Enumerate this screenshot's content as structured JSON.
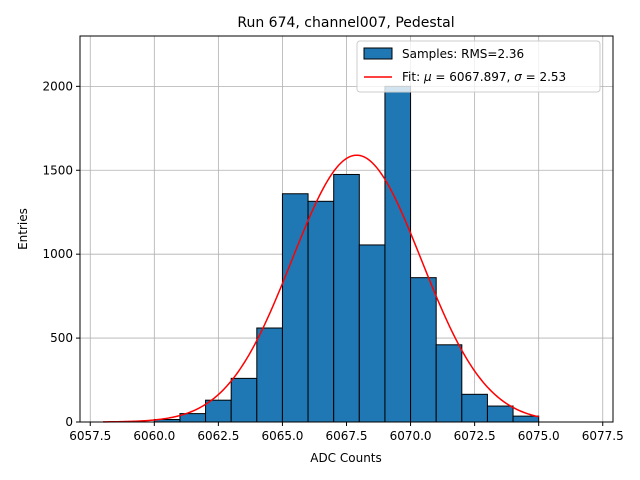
{
  "chart_data": {
    "type": "bar",
    "title": "Run 674, channel007, Pedestal",
    "xlabel": "ADC Counts",
    "ylabel": "Entries",
    "xlim": [
      6057.1,
      6077.9
    ],
    "ylim": [
      0,
      2300
    ],
    "grid": true,
    "xticks": [
      6057.5,
      6060.0,
      6062.5,
      6065.0,
      6067.5,
      6070.0,
      6072.5,
      6075.0,
      6077.5
    ],
    "xtick_labels": [
      "6057.5",
      "6060.0",
      "6062.5",
      "6065.0",
      "6067.5",
      "6070.0",
      "6072.5",
      "6075.0",
      "6077.5"
    ],
    "yticks": [
      0,
      500,
      1000,
      1500,
      2000
    ],
    "ytick_labels": [
      "0",
      "500",
      "1000",
      "1500",
      "2000"
    ],
    "histogram": {
      "name": "Samples: RMS=2.36",
      "color": "#1f77b4",
      "edgecolor": "#000000",
      "bin_edges": [
        6060,
        6061,
        6062,
        6063,
        6064,
        6065,
        6066,
        6067,
        6068,
        6069,
        6070,
        6071,
        6072,
        6073,
        6074,
        6075
      ],
      "counts": [
        15,
        50,
        130,
        260,
        560,
        1360,
        1315,
        1475,
        1055,
        2000,
        860,
        460,
        165,
        95,
        35
      ]
    },
    "fit": {
      "name": "Fit: μ = 6067.897, σ = 2.53",
      "label_prefix": "Fit: ",
      "mu_symbol": "μ",
      "mu_text": " = 6067.897, ",
      "sigma_symbol": "σ",
      "sigma_text": " = 2.53",
      "color": "#ff0000",
      "mu": 6067.897,
      "sigma": 2.53,
      "amplitude": 1590,
      "x_range": [
        6058.0,
        6075.0
      ]
    },
    "legend_position": "upper-right"
  }
}
